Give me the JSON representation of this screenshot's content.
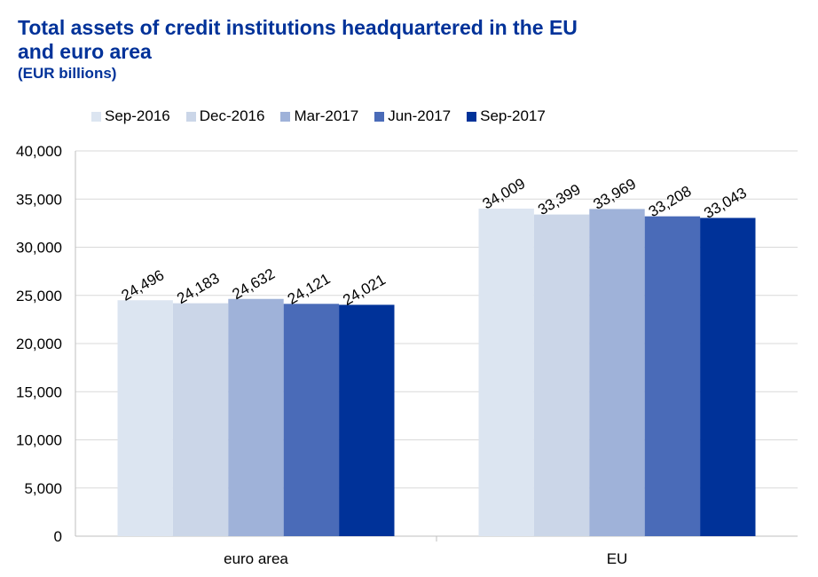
{
  "chart_data": {
    "type": "bar",
    "title_lines": [
      "Total assets of credit institutions headquartered in the EU",
      "and euro area"
    ],
    "subtitle": "(EUR billions)",
    "categories": [
      "euro area",
      "EU"
    ],
    "series": [
      {
        "name": "Sep-2016",
        "color": "#DCE5F1",
        "values": [
          24496,
          34009
        ],
        "labels": [
          "24,496",
          "34,009"
        ]
      },
      {
        "name": "Dec-2016",
        "color": "#CBD6E8",
        "values": [
          24183,
          33399
        ],
        "labels": [
          "24,183",
          "33,399"
        ]
      },
      {
        "name": "Mar-2017",
        "color": "#9FB2D9",
        "values": [
          24632,
          33969
        ],
        "labels": [
          "24,632",
          "33,969"
        ]
      },
      {
        "name": "Jun-2017",
        "color": "#4A6BB8",
        "values": [
          24121,
          33208
        ],
        "labels": [
          "24,121",
          "33,208"
        ]
      },
      {
        "name": "Sep-2017",
        "color": "#003299",
        "values": [
          24021,
          33043
        ],
        "labels": [
          "24,021",
          "33,043"
        ]
      }
    ],
    "ylim": [
      0,
      40000
    ],
    "yticks": [
      0,
      5000,
      10000,
      15000,
      20000,
      25000,
      30000,
      35000,
      40000
    ],
    "ytick_labels": [
      "0",
      "5,000",
      "10,000",
      "15,000",
      "20,000",
      "25,000",
      "30,000",
      "35,000",
      "40,000"
    ],
    "grid": true,
    "legend_position": "top"
  }
}
